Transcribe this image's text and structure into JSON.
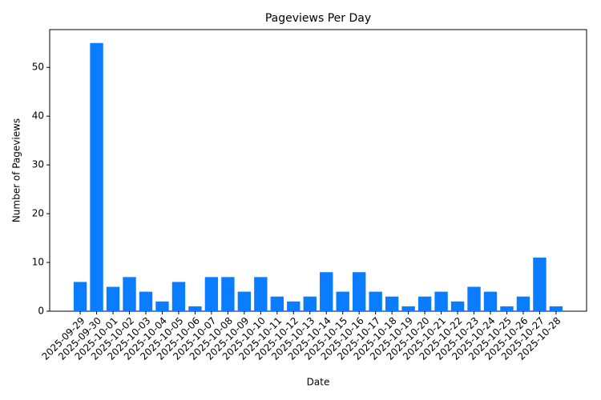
{
  "chart_data": {
    "type": "bar",
    "title": "Pageviews Per Day",
    "x_label": "Date",
    "y_label": "Number of Pageviews",
    "categories": [
      "2025-09-29",
      "2025-09-30",
      "2025-10-01",
      "2025-10-02",
      "2025-10-03",
      "2025-10-04",
      "2025-10-05",
      "2025-10-06",
      "2025-10-07",
      "2025-10-08",
      "2025-10-09",
      "2025-10-10",
      "2025-10-11",
      "2025-10-12",
      "2025-10-13",
      "2025-10-14",
      "2025-10-15",
      "2025-10-16",
      "2025-10-17",
      "2025-10-18",
      "2025-10-19",
      "2025-10-20",
      "2025-10-21",
      "2025-10-22",
      "2025-10-23",
      "2025-10-24",
      "2025-10-25",
      "2025-10-26",
      "2025-10-27",
      "2025-10-28"
    ],
    "values": [
      6,
      55,
      5,
      7,
      4,
      2,
      6,
      1,
      7,
      7,
      4,
      7,
      3,
      2,
      3,
      8,
      4,
      8,
      4,
      3,
      1,
      3,
      4,
      2,
      5,
      4,
      1,
      3,
      11,
      1
    ],
    "color": "#0a7cff",
    "ylim": [
      0,
      57.75
    ],
    "yticks": [
      0,
      10,
      20,
      30,
      40,
      50
    ],
    "grid": false
  }
}
